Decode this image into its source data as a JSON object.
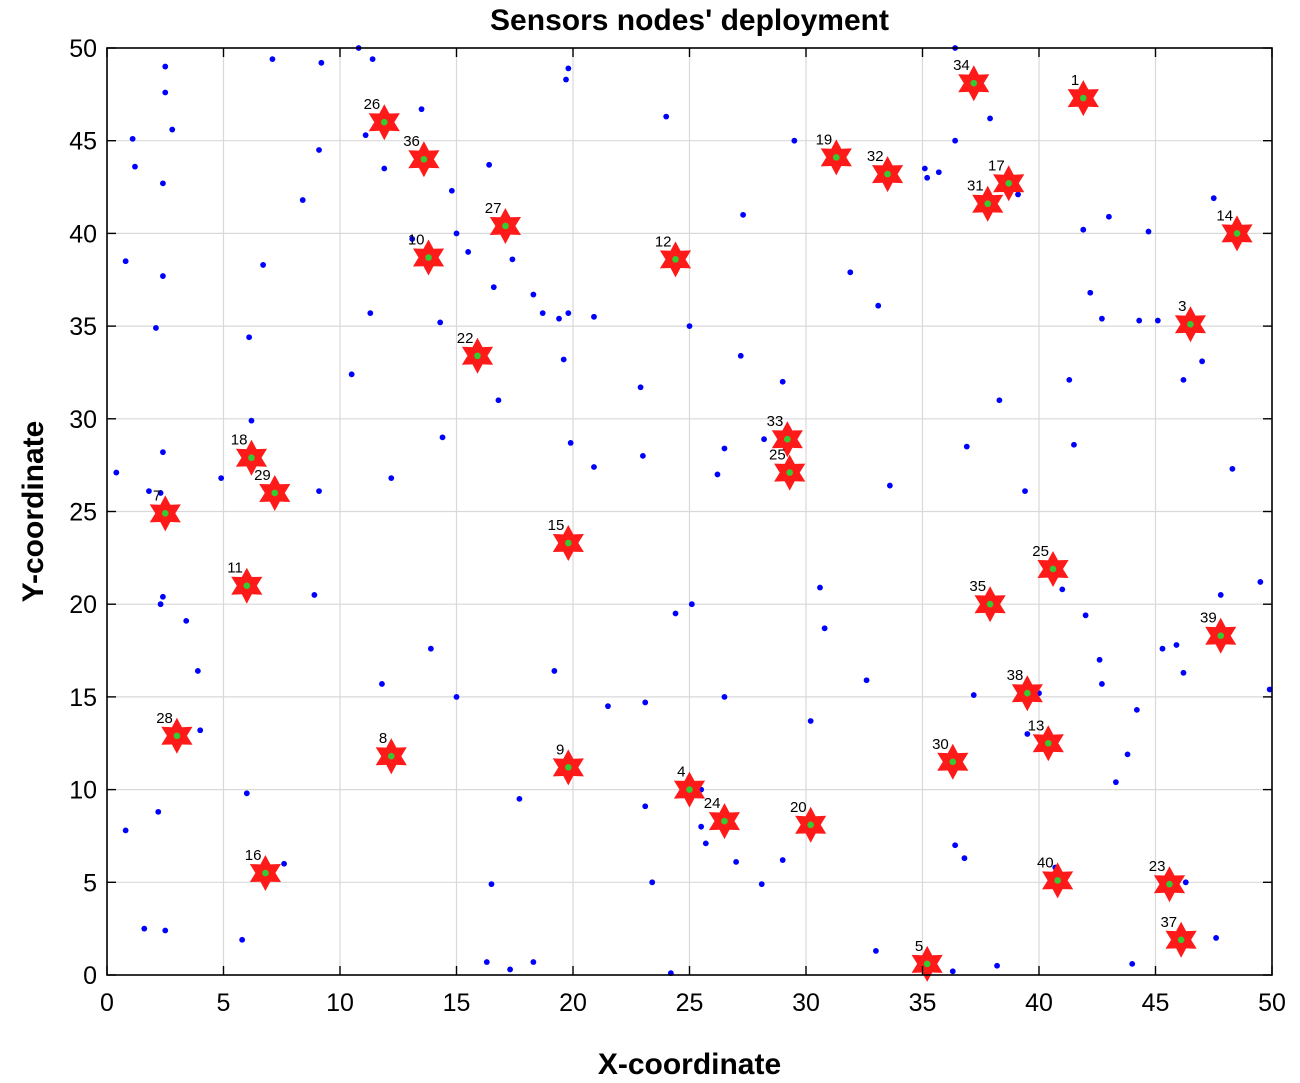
{
  "chart_data": {
    "type": "scatter",
    "title": "Sensors nodes' deployment",
    "xlabel": "X-coordinate",
    "ylabel": "Y-coordinate",
    "xlim": [
      0,
      50
    ],
    "ylim": [
      0,
      50
    ],
    "xticks": [
      0,
      5,
      10,
      15,
      20,
      25,
      30,
      35,
      40,
      45,
      50
    ],
    "yticks": [
      0,
      5,
      10,
      15,
      20,
      25,
      30,
      35,
      40,
      45,
      50
    ],
    "grid": true,
    "colors": {
      "sensor_node": "#0000ff",
      "cluster_head_star": "#ff1a1a",
      "cluster_head_center": "#33cc33"
    },
    "series": [
      {
        "marker": "dot",
        "points": [
          [
            0.4,
            27.1
          ],
          [
            0.8,
            7.8
          ],
          [
            0.8,
            38.5
          ],
          [
            1.1,
            45.1
          ],
          [
            1.2,
            43.6
          ],
          [
            1.6,
            2.5
          ],
          [
            1.8,
            26.1
          ],
          [
            2.1,
            34.9
          ],
          [
            2.2,
            8.8
          ],
          [
            2.3,
            20.0
          ],
          [
            2.3,
            26.0
          ],
          [
            2.4,
            20.4
          ],
          [
            2.4,
            28.2
          ],
          [
            2.4,
            37.7
          ],
          [
            2.4,
            42.7
          ],
          [
            2.5,
            47.6
          ],
          [
            2.5,
            49.0
          ],
          [
            2.5,
            2.4
          ],
          [
            2.8,
            45.6
          ],
          [
            3.4,
            19.1
          ],
          [
            3.9,
            16.4
          ],
          [
            4.0,
            13.2
          ],
          [
            4.9,
            26.8
          ],
          [
            5.8,
            1.9
          ],
          [
            6.0,
            9.8
          ],
          [
            6.1,
            34.4
          ],
          [
            6.2,
            29.9
          ],
          [
            6.7,
            38.3
          ],
          [
            7.1,
            49.4
          ],
          [
            7.6,
            6.0
          ],
          [
            8.4,
            41.8
          ],
          [
            8.9,
            20.5
          ],
          [
            9.1,
            26.1
          ],
          [
            9.1,
            44.5
          ],
          [
            9.2,
            49.2
          ],
          [
            10.5,
            32.4
          ],
          [
            10.8,
            50.0
          ],
          [
            11.1,
            45.3
          ],
          [
            11.3,
            35.7
          ],
          [
            11.4,
            49.4
          ],
          [
            11.8,
            15.7
          ],
          [
            11.9,
            43.5
          ],
          [
            12.2,
            26.8
          ],
          [
            13.1,
            39.7
          ],
          [
            13.5,
            46.7
          ],
          [
            13.9,
            17.6
          ],
          [
            14.3,
            35.2
          ],
          [
            14.4,
            29.0
          ],
          [
            14.8,
            42.3
          ],
          [
            15.0,
            15.0
          ],
          [
            15.0,
            40.0
          ],
          [
            15.5,
            39.0
          ],
          [
            16.3,
            0.7
          ],
          [
            16.4,
            43.7
          ],
          [
            16.5,
            4.9
          ],
          [
            16.6,
            37.1
          ],
          [
            16.8,
            31.0
          ],
          [
            17.3,
            0.3
          ],
          [
            17.4,
            38.6
          ],
          [
            17.7,
            9.5
          ],
          [
            18.3,
            0.7
          ],
          [
            18.3,
            36.7
          ],
          [
            18.7,
            35.7
          ],
          [
            19.2,
            16.4
          ],
          [
            19.4,
            35.4
          ],
          [
            19.6,
            33.2
          ],
          [
            19.7,
            48.3
          ],
          [
            19.8,
            48.9
          ],
          [
            19.8,
            35.7
          ],
          [
            19.9,
            28.7
          ],
          [
            20.9,
            27.4
          ],
          [
            20.9,
            35.5
          ],
          [
            21.5,
            14.5
          ],
          [
            22.9,
            31.7
          ],
          [
            23.0,
            28.0
          ],
          [
            23.1,
            9.1
          ],
          [
            23.1,
            14.7
          ],
          [
            23.4,
            5.0
          ],
          [
            24.0,
            46.3
          ],
          [
            24.2,
            0.1
          ],
          [
            24.4,
            19.5
          ],
          [
            25.0,
            35.0
          ],
          [
            25.1,
            20.0
          ],
          [
            25.5,
            10.0
          ],
          [
            25.5,
            8.0
          ],
          [
            25.7,
            7.1
          ],
          [
            26.2,
            27.0
          ],
          [
            26.5,
            15.0
          ],
          [
            26.5,
            28.4
          ],
          [
            27.0,
            6.1
          ],
          [
            27.2,
            33.4
          ],
          [
            27.3,
            41.0
          ],
          [
            28.1,
            4.9
          ],
          [
            28.2,
            28.9
          ],
          [
            29.0,
            6.2
          ],
          [
            29.0,
            32.0
          ],
          [
            29.5,
            45.0
          ],
          [
            30.2,
            13.7
          ],
          [
            30.6,
            20.9
          ],
          [
            30.8,
            18.7
          ],
          [
            31.9,
            37.9
          ],
          [
            32.6,
            15.9
          ],
          [
            33.0,
            1.3
          ],
          [
            33.1,
            36.1
          ],
          [
            33.6,
            26.4
          ],
          [
            35.1,
            43.5
          ],
          [
            35.2,
            43.0
          ],
          [
            35.7,
            43.3
          ],
          [
            36.3,
            0.2
          ],
          [
            36.4,
            7.0
          ],
          [
            36.4,
            45.0
          ],
          [
            36.4,
            50.0
          ],
          [
            36.8,
            6.3
          ],
          [
            36.9,
            28.5
          ],
          [
            37.2,
            15.1
          ],
          [
            37.9,
            46.2
          ],
          [
            38.2,
            0.5
          ],
          [
            38.3,
            31.0
          ],
          [
            39.1,
            42.1
          ],
          [
            39.4,
            26.1
          ],
          [
            39.5,
            13.0
          ],
          [
            40.0,
            15.2
          ],
          [
            40.7,
            5.8
          ],
          [
            41.0,
            20.8
          ],
          [
            41.3,
            32.1
          ],
          [
            41.5,
            28.6
          ],
          [
            41.9,
            40.2
          ],
          [
            42.0,
            19.4
          ],
          [
            42.2,
            36.8
          ],
          [
            42.6,
            17.0
          ],
          [
            42.7,
            35.4
          ],
          [
            42.7,
            15.7
          ],
          [
            43.0,
            40.9
          ],
          [
            43.3,
            10.4
          ],
          [
            43.8,
            11.9
          ],
          [
            44.0,
            0.6
          ],
          [
            44.2,
            14.3
          ],
          [
            44.3,
            35.3
          ],
          [
            44.7,
            40.1
          ],
          [
            45.1,
            35.3
          ],
          [
            45.3,
            17.6
          ],
          [
            45.9,
            17.8
          ],
          [
            46.2,
            16.3
          ],
          [
            46.2,
            32.1
          ],
          [
            46.3,
            5.0
          ],
          [
            47.0,
            33.1
          ],
          [
            47.5,
            41.9
          ],
          [
            47.6,
            2.0
          ],
          [
            47.8,
            20.5
          ],
          [
            48.3,
            27.3
          ],
          [
            49.5,
            21.2
          ],
          [
            49.9,
            15.4
          ]
        ]
      },
      {
        "marker": "star",
        "points": [
          {
            "id": "1",
            "x": 41.9,
            "y": 47.3
          },
          {
            "id": "3",
            "x": 46.5,
            "y": 35.1
          },
          {
            "id": "4",
            "x": 25.0,
            "y": 10.0
          },
          {
            "id": "5",
            "x": 35.2,
            "y": 0.6
          },
          {
            "id": "7",
            "x": 2.5,
            "y": 24.9
          },
          {
            "id": "8",
            "x": 12.2,
            "y": 11.8
          },
          {
            "id": "9",
            "x": 19.8,
            "y": 11.2
          },
          {
            "id": "10",
            "x": 13.8,
            "y": 38.7
          },
          {
            "id": "11",
            "x": 6.0,
            "y": 21.0
          },
          {
            "id": "12",
            "x": 24.4,
            "y": 38.6
          },
          {
            "id": "13",
            "x": 40.4,
            "y": 12.5
          },
          {
            "id": "14",
            "x": 48.5,
            "y": 40.0
          },
          {
            "id": "15",
            "x": 19.8,
            "y": 23.3
          },
          {
            "id": "16",
            "x": 6.8,
            "y": 5.5
          },
          {
            "id": "17",
            "x": 38.7,
            "y": 42.7
          },
          {
            "id": "18",
            "x": 6.2,
            "y": 27.9
          },
          {
            "id": "19",
            "x": 31.3,
            "y": 44.1
          },
          {
            "id": "20",
            "x": 30.2,
            "y": 8.1
          },
          {
            "id": "22",
            "x": 15.9,
            "y": 33.4
          },
          {
            "id": "23",
            "x": 45.6,
            "y": 4.9
          },
          {
            "id": "24",
            "x": 26.5,
            "y": 8.3
          },
          {
            "id": "25",
            "x": 40.6,
            "y": 21.9
          },
          {
            "id": "26",
            "x": 11.9,
            "y": 46.0
          },
          {
            "id": "27",
            "x": 17.1,
            "y": 40.4
          },
          {
            "id": "28",
            "x": 3.0,
            "y": 12.9
          },
          {
            "id": "29",
            "x": 7.2,
            "y": 26.0
          },
          {
            "id": "30",
            "x": 36.3,
            "y": 11.5
          },
          {
            "id": "31",
            "x": 37.8,
            "y": 41.6
          },
          {
            "id": "32",
            "x": 33.5,
            "y": 43.2
          },
          {
            "id": "33",
            "x": 29.2,
            "y": 28.9
          },
          {
            "id": "34",
            "x": 37.2,
            "y": 48.1
          },
          {
            "id": "35",
            "x": 37.9,
            "y": 20.0
          },
          {
            "id": "36",
            "x": 13.6,
            "y": 44.0
          },
          {
            "id": "37",
            "x": 46.1,
            "y": 1.9
          },
          {
            "id": "38",
            "x": 39.5,
            "y": 15.2
          },
          {
            "id": "39",
            "x": 47.8,
            "y": 18.3
          },
          {
            "id": "40",
            "x": 40.8,
            "y": 5.1
          },
          {
            "id": "25",
            "x": 29.3,
            "y": 27.1
          }
        ]
      }
    ]
  }
}
